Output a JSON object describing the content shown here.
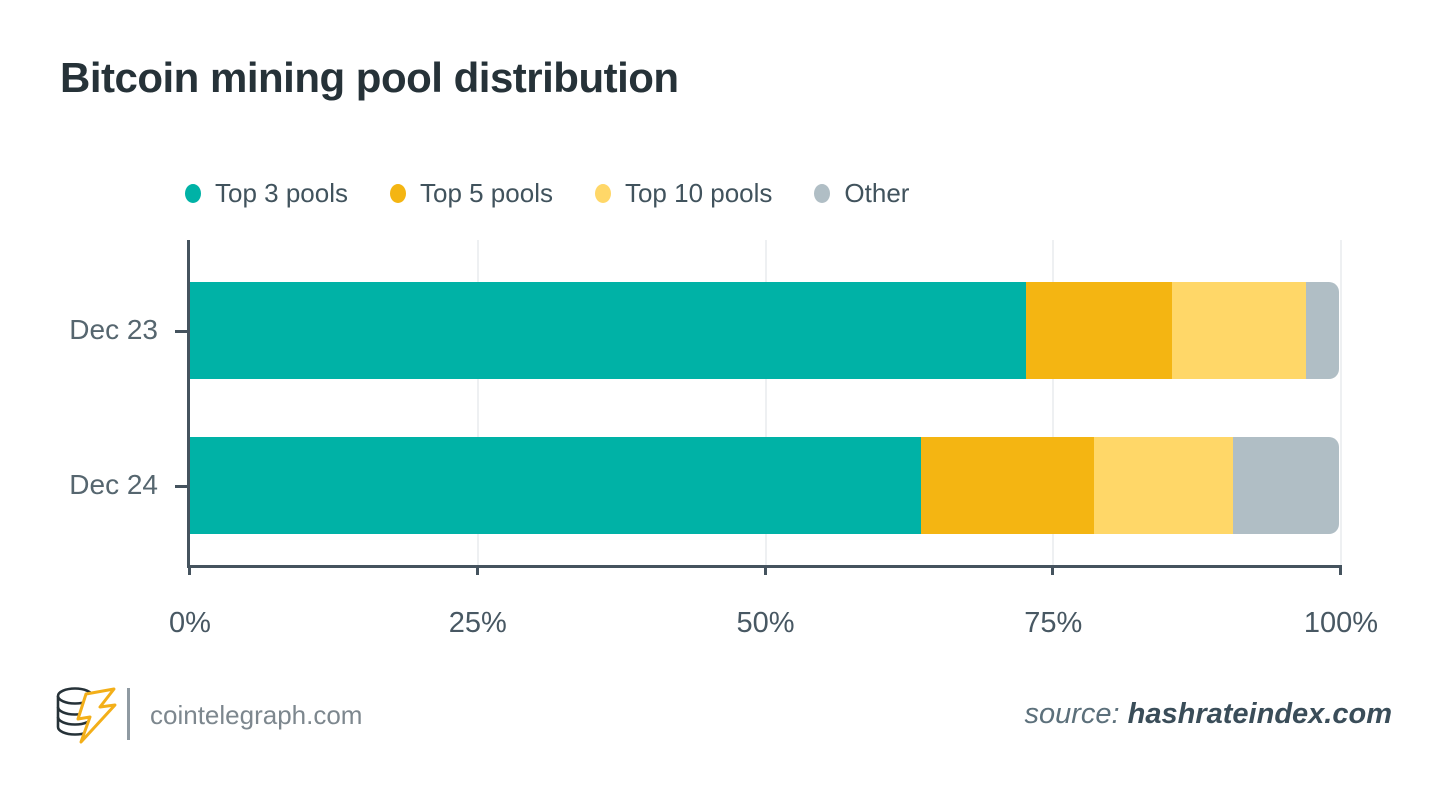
{
  "title": "Bitcoin mining pool distribution",
  "colors": {
    "top3": "#00b2a6",
    "top5": "#f4b512",
    "top10": "#ffd768",
    "other": "#b0bec5",
    "axis": "#45535e",
    "gridline": "#eef0f2",
    "title_text": "#263238",
    "label_text": "#56666f"
  },
  "chart_data": {
    "type": "bar",
    "subtype": "horizontal-stacked",
    "title": "Bitcoin mining pool distribution",
    "categories": [
      "Dec 23",
      "Dec 24"
    ],
    "series": [
      {
        "name": "Top 3 pools",
        "color": "#00b2a6",
        "values": [
          72.6,
          63.5
        ]
      },
      {
        "name": "Top 5 pools",
        "color": "#f4b512",
        "values": [
          12.7,
          15.0
        ]
      },
      {
        "name": "Top 10 pools",
        "color": "#ffd768",
        "values": [
          11.7,
          12.1
        ]
      },
      {
        "name": "Other",
        "color": "#b0bec5",
        "values": [
          2.8,
          9.2
        ]
      }
    ],
    "x_tick_labels": [
      "0%",
      "25%",
      "50%",
      "75%",
      "100%"
    ],
    "x_tick_values": [
      0,
      25,
      50,
      75,
      100
    ],
    "xlim": [
      0,
      100
    ],
    "xlabel": "",
    "ylabel": "",
    "grid": true,
    "legend_position": "top"
  },
  "footer": {
    "logo_icon": "cointelegraph-coin-stack-lightning",
    "brand": "cointelegraph.com",
    "source_prefix": "source: ",
    "source_value": "hashrateindex.com"
  }
}
